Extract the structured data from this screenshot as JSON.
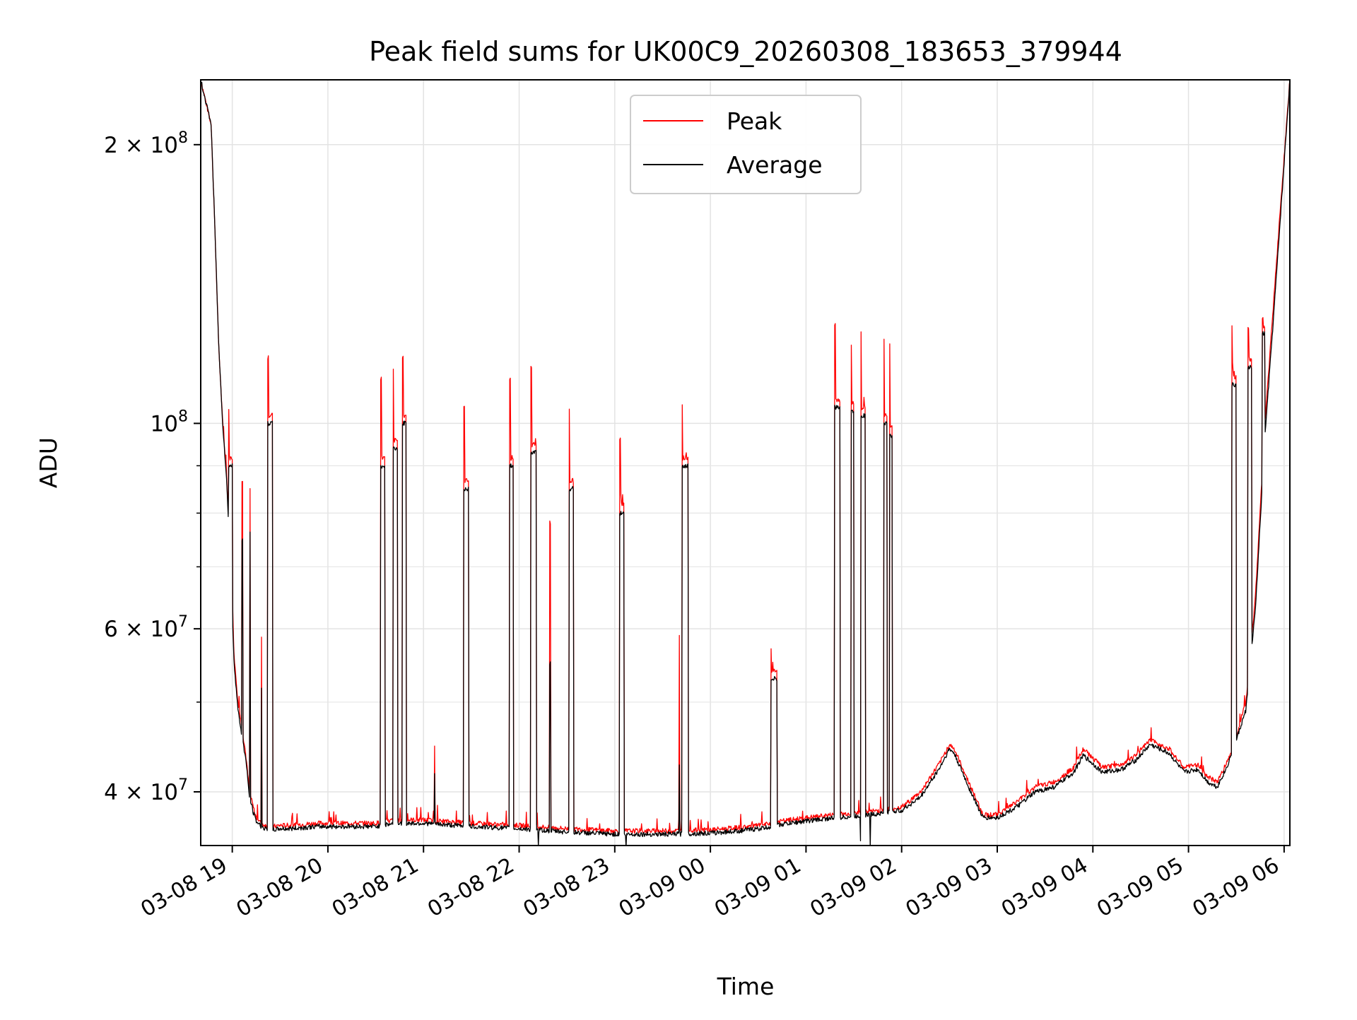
{
  "chart_data": {
    "type": "line",
    "title": "Peak field sums for UK00C9_20260308_183653_379944",
    "xlabel": "Time",
    "ylabel": "ADU",
    "yscale": "log",
    "ylim": [
      35000000,
      235000000
    ],
    "xlim_hours": [
      18.67,
      30.06
    ],
    "grid": true,
    "legend_position": "top-center",
    "x_tick_labels": [
      "03-08 19",
      "03-08 20",
      "03-08 21",
      "03-08 22",
      "03-08 23",
      "03-09 00",
      "03-09 01",
      "03-09 02",
      "03-09 03",
      "03-09 04",
      "03-09 05",
      "03-09 06"
    ],
    "x_tick_hours": [
      19,
      20,
      21,
      22,
      23,
      24,
      25,
      26,
      27,
      28,
      29,
      30
    ],
    "y_tick_labels": [
      {
        "value": 200000000,
        "mantissa": "2",
        "exp": "8"
      },
      {
        "value": 100000000,
        "mantissa": "",
        "exp": "8"
      },
      {
        "value": 60000000,
        "mantissa": "6",
        "exp": "7"
      },
      {
        "value": 40000000,
        "mantissa": "4",
        "exp": "7"
      }
    ],
    "series": [
      {
        "name": "Peak",
        "color": "#ff0000",
        "x_hours": [
          18.67,
          18.78,
          18.82,
          18.86,
          18.9,
          18.94,
          18.98,
          19.02,
          19.06,
          19.1,
          19.14,
          19.18,
          19.22,
          19.25,
          19.3,
          19.34,
          19.38,
          19.43,
          19.5,
          19.6,
          19.75,
          19.9,
          20.2,
          20.5,
          20.7,
          21.0,
          21.5,
          22.0,
          22.5,
          23.0,
          23.3,
          23.6,
          24.0,
          24.3,
          24.6,
          24.75,
          25.0,
          25.3,
          25.6,
          26.0,
          26.2,
          26.4,
          26.5,
          26.55,
          26.7,
          26.85,
          27.0,
          27.2,
          27.4,
          27.6,
          27.8,
          27.9,
          28.1,
          28.3,
          28.45,
          28.6,
          28.8,
          28.95,
          29.1,
          29.2,
          29.3,
          29.4,
          29.5,
          29.6,
          29.7,
          29.8,
          29.9,
          30.06
        ],
        "y_values": [
          235000000,
          210000000,
          160000000,
          120000000,
          100000000,
          88000000,
          72000000,
          56000000,
          50000000,
          47000000,
          44000000,
          40000000,
          38500000,
          37500000,
          37000000,
          36800000,
          36700000,
          36700000,
          36800000,
          36800000,
          36900000,
          37000000,
          37000000,
          37000000,
          37300000,
          37300000,
          37000000,
          36800000,
          36500000,
          36300000,
          36300000,
          36300000,
          36400000,
          36600000,
          36900000,
          37200000,
          37500000,
          37800000,
          38000000,
          38500000,
          40000000,
          43000000,
          45000000,
          44500000,
          41000000,
          37800000,
          37800000,
          39000000,
          40500000,
          41000000,
          42500000,
          44500000,
          42500000,
          42800000,
          43800000,
          45500000,
          44500000,
          42500000,
          42800000,
          41500000,
          41000000,
          43000000,
          46000000,
          50000000,
          65000000,
          100000000,
          140000000,
          235000000
        ]
      },
      {
        "name": "Average",
        "color": "#000000",
        "x_hours": [
          18.67,
          18.78,
          18.82,
          18.86,
          18.9,
          18.94,
          18.98,
          19.02,
          19.06,
          19.1,
          19.14,
          19.18,
          19.22,
          19.25,
          19.3,
          19.34,
          19.38,
          19.43,
          19.5,
          19.6,
          19.75,
          19.9,
          20.2,
          20.5,
          20.7,
          21.0,
          21.5,
          22.0,
          22.5,
          23.0,
          23.3,
          23.6,
          24.0,
          24.3,
          24.6,
          24.75,
          25.0,
          25.3,
          25.6,
          26.0,
          26.2,
          26.4,
          26.5,
          26.55,
          26.7,
          26.85,
          27.0,
          27.2,
          27.4,
          27.6,
          27.8,
          27.9,
          28.1,
          28.3,
          28.45,
          28.6,
          28.8,
          28.95,
          29.1,
          29.2,
          29.3,
          29.4,
          29.5,
          29.6,
          29.7,
          29.8,
          29.9,
          30.06
        ],
        "y_values": [
          235000000,
          210000000,
          160000000,
          120000000,
          100000000,
          87000000,
          71000000,
          55000000,
          49000000,
          46000000,
          43500000,
          39500000,
          38000000,
          37200000,
          36700000,
          36500000,
          36400000,
          36400000,
          36500000,
          36500000,
          36600000,
          36700000,
          36700000,
          36700000,
          37000000,
          37000000,
          36700000,
          36500000,
          36200000,
          36000000,
          36000000,
          36000000,
          36100000,
          36300000,
          36600000,
          36900000,
          37200000,
          37500000,
          37700000,
          38200000,
          39500000,
          42500000,
          44500000,
          44000000,
          40500000,
          37500000,
          37500000,
          38500000,
          40000000,
          40500000,
          42000000,
          43800000,
          42000000,
          42300000,
          43300000,
          45000000,
          44000000,
          42000000,
          42300000,
          41000000,
          40500000,
          42500000,
          45500000,
          49000000,
          63000000,
          97000000,
          135000000,
          235000000
        ]
      }
    ],
    "bursts": [
      {
        "start": 18.96,
        "end": 19.0,
        "value": 90000000,
        "peak": 104000000
      },
      {
        "start": 19.1,
        "end": 19.11,
        "value": 75000000,
        "peak": 87000000
      },
      {
        "start": 19.18,
        "end": 19.19,
        "value": 76000000,
        "peak": 85000000
      },
      {
        "start": 19.3,
        "end": 19.31,
        "value": 52000000,
        "peak": 59000000
      },
      {
        "start": 19.37,
        "end": 19.42,
        "value": 100000000,
        "peak": 118000000
      },
      {
        "start": 20.55,
        "end": 20.6,
        "value": 90000000,
        "peak": 112000000
      },
      {
        "start": 20.68,
        "end": 20.73,
        "value": 94000000,
        "peak": 114000000
      },
      {
        "start": 20.78,
        "end": 20.82,
        "value": 100000000,
        "peak": 118000000
      },
      {
        "start": 21.11,
        "end": 21.12,
        "value": 42000000,
        "peak": 45000000
      },
      {
        "start": 21.42,
        "end": 21.47,
        "value": 85000000,
        "peak": 104000000
      },
      {
        "start": 21.9,
        "end": 21.94,
        "value": 90000000,
        "peak": 112000000
      },
      {
        "start": 22.12,
        "end": 22.18,
        "value": 93000000,
        "peak": 115000000
      },
      {
        "start": 22.32,
        "end": 22.33,
        "value": 55000000,
        "peak": 78000000
      },
      {
        "start": 22.52,
        "end": 22.57,
        "value": 85000000,
        "peak": 104000000
      },
      {
        "start": 23.05,
        "end": 23.1,
        "value": 80000000,
        "peak": 96000000
      },
      {
        "start": 23.67,
        "end": 23.68,
        "value": 43000000,
        "peak": 59000000
      },
      {
        "start": 23.7,
        "end": 23.77,
        "value": 90000000,
        "peak": 105000000
      },
      {
        "start": 24.63,
        "end": 24.7,
        "value": 53000000,
        "peak": 57000000
      },
      {
        "start": 25.3,
        "end": 25.36,
        "value": 104000000,
        "peak": 128000000
      },
      {
        "start": 25.47,
        "end": 25.5,
        "value": 103000000,
        "peak": 122000000
      },
      {
        "start": 25.57,
        "end": 25.62,
        "value": 102000000,
        "peak": 125000000
      },
      {
        "start": 25.81,
        "end": 25.85,
        "value": 100000000,
        "peak": 124000000
      },
      {
        "start": 25.87,
        "end": 25.9,
        "value": 97000000,
        "peak": 122000000
      },
      {
        "start": 29.45,
        "end": 29.5,
        "value": 110000000,
        "peak": 127000000
      },
      {
        "start": 29.62,
        "end": 29.66,
        "value": 115000000,
        "peak": 127000000
      },
      {
        "start": 29.77,
        "end": 29.8,
        "value": 125000000,
        "peak": 130000000
      }
    ],
    "dips": [
      {
        "x": 22.2,
        "value": 34800000
      },
      {
        "x": 23.12,
        "value": 34700000
      },
      {
        "x": 25.57,
        "value": 35500000
      },
      {
        "x": 25.67,
        "value": 35000000
      }
    ]
  }
}
